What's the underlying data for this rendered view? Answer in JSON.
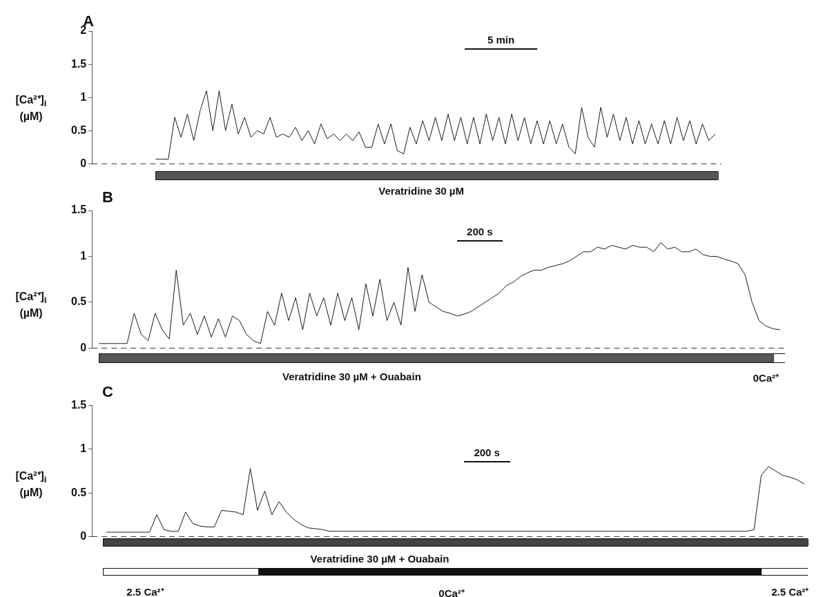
{
  "chart_data": [
    {
      "type": "line",
      "title": "A",
      "ylabel": "[Ca²⁺]$_{i}$ (µM)",
      "categories": [
        null,
        null,
        null,
        null,
        null,
        null,
        null,
        null,
        null,
        null,
        null,
        null,
        null,
        null,
        null,
        null,
        null,
        null,
        null,
        null,
        null,
        null,
        null,
        null,
        null,
        null,
        null,
        null,
        null,
        null,
        null,
        null,
        null,
        null,
        null,
        null,
        null,
        null,
        null,
        null,
        null,
        null,
        null,
        null,
        null,
        null,
        null,
        null,
        null,
        null,
        null,
        null,
        null,
        null,
        null,
        null,
        null,
        null,
        null,
        null,
        null,
        null,
        null,
        null,
        null,
        null,
        null,
        null,
        null,
        null,
        null,
        null,
        null,
        null,
        null,
        null,
        null,
        null,
        null,
        null,
        null,
        null,
        null,
        null,
        null,
        null,
        null,
        null,
        null,
        null,
        null,
        null,
        null,
        null,
        null,
        null,
        null,
        null,
        null,
        null
      ],
      "series": [
        {
          "color": "#1a1a1a",
          "values": [
            null,
            null,
            null,
            null,
            null,
            null,
            null,
            null,
            null,
            null,
            0.07,
            0.07,
            0.07,
            0.7,
            0.4,
            0.75,
            0.35,
            0.8,
            1.1,
            0.5,
            1.1,
            0.5,
            0.9,
            0.45,
            0.7,
            0.4,
            0.5,
            0.45,
            0.7,
            0.4,
            0.45,
            0.4,
            0.55,
            0.35,
            0.5,
            0.3,
            0.6,
            0.38,
            0.45,
            0.35,
            0.45,
            0.35,
            0.48,
            0.25,
            0.25,
            0.6,
            0.3,
            0.6,
            0.2,
            0.15,
            0.55,
            0.3,
            0.65,
            0.35,
            0.7,
            0.35,
            0.75,
            0.35,
            0.7,
            0.3,
            0.7,
            0.3,
            0.75,
            0.35,
            0.7,
            0.3,
            0.75,
            0.35,
            0.7,
            0.3,
            0.65,
            0.3,
            0.65,
            0.3,
            0.6,
            0.25,
            0.15,
            0.85,
            0.4,
            0.25,
            0.85,
            0.4,
            0.75,
            0.35,
            0.7,
            0.3,
            0.65,
            0.3,
            0.6,
            0.3,
            0.65,
            0.3,
            0.7,
            0.35,
            0.65,
            0.3,
            0.6,
            0.35,
            0.45,
            null
          ]
        }
      ],
      "ylim": [
        0,
        2
      ],
      "yticks": [
        0,
        0.5,
        1,
        1.5,
        2
      ],
      "tick_labels": "y",
      "marker": "none",
      "ref_lines": [
        {
          "axis": "y",
          "value": 0,
          "line_style": "dashed"
        }
      ],
      "annotations": [
        "5 min",
        "Veratridine 30 µM"
      ]
    },
    {
      "type": "line",
      "title": "B",
      "ylabel": "[Ca²⁺]$_{i}$ (µM)",
      "categories": [
        null,
        null,
        null,
        null,
        null,
        null,
        null,
        null,
        null,
        null,
        null,
        null,
        null,
        null,
        null,
        null,
        null,
        null,
        null,
        null,
        null,
        null,
        null,
        null,
        null,
        null,
        null,
        null,
        null,
        null,
        null,
        null,
        null,
        null,
        null,
        null,
        null,
        null,
        null,
        null,
        null,
        null,
        null,
        null,
        null,
        null,
        null,
        null,
        null,
        null,
        null,
        null,
        null,
        null,
        null,
        null,
        null,
        null,
        null,
        null,
        null,
        null,
        null,
        null,
        null,
        null,
        null,
        null,
        null,
        null,
        null,
        null,
        null,
        null,
        null,
        null,
        null,
        null,
        null,
        null,
        null,
        null,
        null,
        null,
        null,
        null,
        null,
        null,
        null,
        null,
        null,
        null,
        null,
        null,
        null,
        null,
        null,
        null,
        null,
        null
      ],
      "series": [
        {
          "color": "#1a1a1a",
          "values": [
            null,
            0.05,
            0.05,
            0.05,
            0.05,
            0.05,
            0.38,
            0.15,
            0.08,
            0.38,
            0.2,
            0.1,
            0.85,
            0.25,
            0.38,
            0.15,
            0.35,
            0.12,
            0.32,
            0.12,
            0.35,
            0.3,
            0.15,
            0.08,
            0.05,
            0.4,
            0.25,
            0.6,
            0.3,
            0.55,
            0.2,
            0.6,
            0.35,
            0.55,
            0.25,
            0.6,
            0.3,
            0.55,
            0.2,
            0.7,
            0.35,
            0.75,
            0.3,
            0.5,
            0.25,
            0.88,
            0.4,
            0.8,
            0.5,
            0.45,
            0.4,
            0.38,
            0.35,
            0.37,
            0.4,
            0.45,
            0.5,
            0.55,
            0.6,
            0.68,
            0.72,
            0.78,
            0.82,
            0.85,
            0.85,
            0.88,
            0.9,
            0.92,
            0.95,
            1.0,
            1.05,
            1.05,
            1.1,
            1.08,
            1.12,
            1.1,
            1.08,
            1.12,
            1.1,
            1.1,
            1.05,
            1.15,
            1.08,
            1.1,
            1.05,
            1.05,
            1.08,
            1.02,
            1.0,
            1.0,
            0.97,
            0.95,
            0.92,
            0.8,
            0.5,
            0.3,
            0.24,
            0.21,
            0.2,
            null
          ]
        }
      ],
      "ylim": [
        0,
        1.5
      ],
      "yticks": [
        0,
        0.5,
        1,
        1.5
      ],
      "tick_labels": "y",
      "marker": "none",
      "ref_lines": [
        {
          "axis": "y",
          "value": 0,
          "line_style": "dashed"
        }
      ],
      "annotations": [
        "200 s",
        "Veratridine 30 µM + Ouabain",
        "0Ca²⁺"
      ]
    },
    {
      "type": "line",
      "title": "C",
      "ylabel": "[Ca²⁺]$_{i}$ (µM)",
      "categories": [
        null,
        null,
        null,
        null,
        null,
        null,
        null,
        null,
        null,
        null,
        null,
        null,
        null,
        null,
        null,
        null,
        null,
        null,
        null,
        null,
        null,
        null,
        null,
        null,
        null,
        null,
        null,
        null,
        null,
        null,
        null,
        null,
        null,
        null,
        null,
        null,
        null,
        null,
        null,
        null,
        null,
        null,
        null,
        null,
        null,
        null,
        null,
        null,
        null,
        null,
        null,
        null,
        null,
        null,
        null,
        null,
        null,
        null,
        null,
        null,
        null,
        null,
        null,
        null,
        null,
        null,
        null,
        null,
        null,
        null,
        null,
        null,
        null,
        null,
        null,
        null,
        null,
        null,
        null,
        null,
        null,
        null,
        null,
        null,
        null,
        null,
        null,
        null,
        null,
        null,
        null,
        null,
        null,
        null,
        null,
        null,
        null,
        null,
        null,
        null
      ],
      "series": [
        {
          "color": "#1a1a1a",
          "values": [
            null,
            null,
            0.05,
            0.05,
            0.05,
            0.05,
            0.05,
            0.05,
            0.05,
            0.25,
            0.08,
            0.06,
            0.06,
            0.28,
            0.15,
            0.12,
            0.11,
            0.11,
            0.3,
            0.29,
            0.28,
            0.25,
            0.78,
            0.3,
            0.52,
            0.25,
            0.4,
            0.28,
            0.2,
            0.14,
            0.1,
            0.09,
            0.08,
            0.06,
            0.06,
            0.06,
            0.06,
            0.06,
            0.06,
            0.06,
            0.06,
            0.06,
            0.06,
            0.06,
            0.06,
            0.06,
            0.06,
            0.06,
            0.06,
            0.06,
            0.06,
            0.06,
            0.06,
            0.06,
            0.06,
            0.06,
            0.06,
            0.06,
            0.06,
            0.06,
            0.06,
            0.06,
            0.06,
            0.06,
            0.06,
            0.06,
            0.06,
            0.06,
            0.06,
            0.06,
            0.06,
            0.06,
            0.06,
            0.06,
            0.06,
            0.06,
            0.06,
            0.06,
            0.06,
            0.06,
            0.06,
            0.06,
            0.06,
            0.06,
            0.06,
            0.06,
            0.06,
            0.06,
            0.06,
            0.06,
            0.06,
            0.06,
            0.08,
            0.7,
            0.8,
            0.75,
            0.7,
            0.68,
            0.65,
            0.6
          ]
        }
      ],
      "ylim": [
        0,
        1.5
      ],
      "yticks": [
        0,
        0.5,
        1,
        1.5
      ],
      "tick_labels": "y",
      "marker": "none",
      "ref_lines": [
        {
          "axis": "y",
          "value": 0,
          "line_style": "dashed"
        }
      ],
      "annotations": [
        "200 s",
        "Veratridine 30 µM + Ouabain",
        "2.5 Ca²⁺",
        "0Ca²⁺",
        "2.5 Ca²⁺"
      ]
    }
  ]
}
